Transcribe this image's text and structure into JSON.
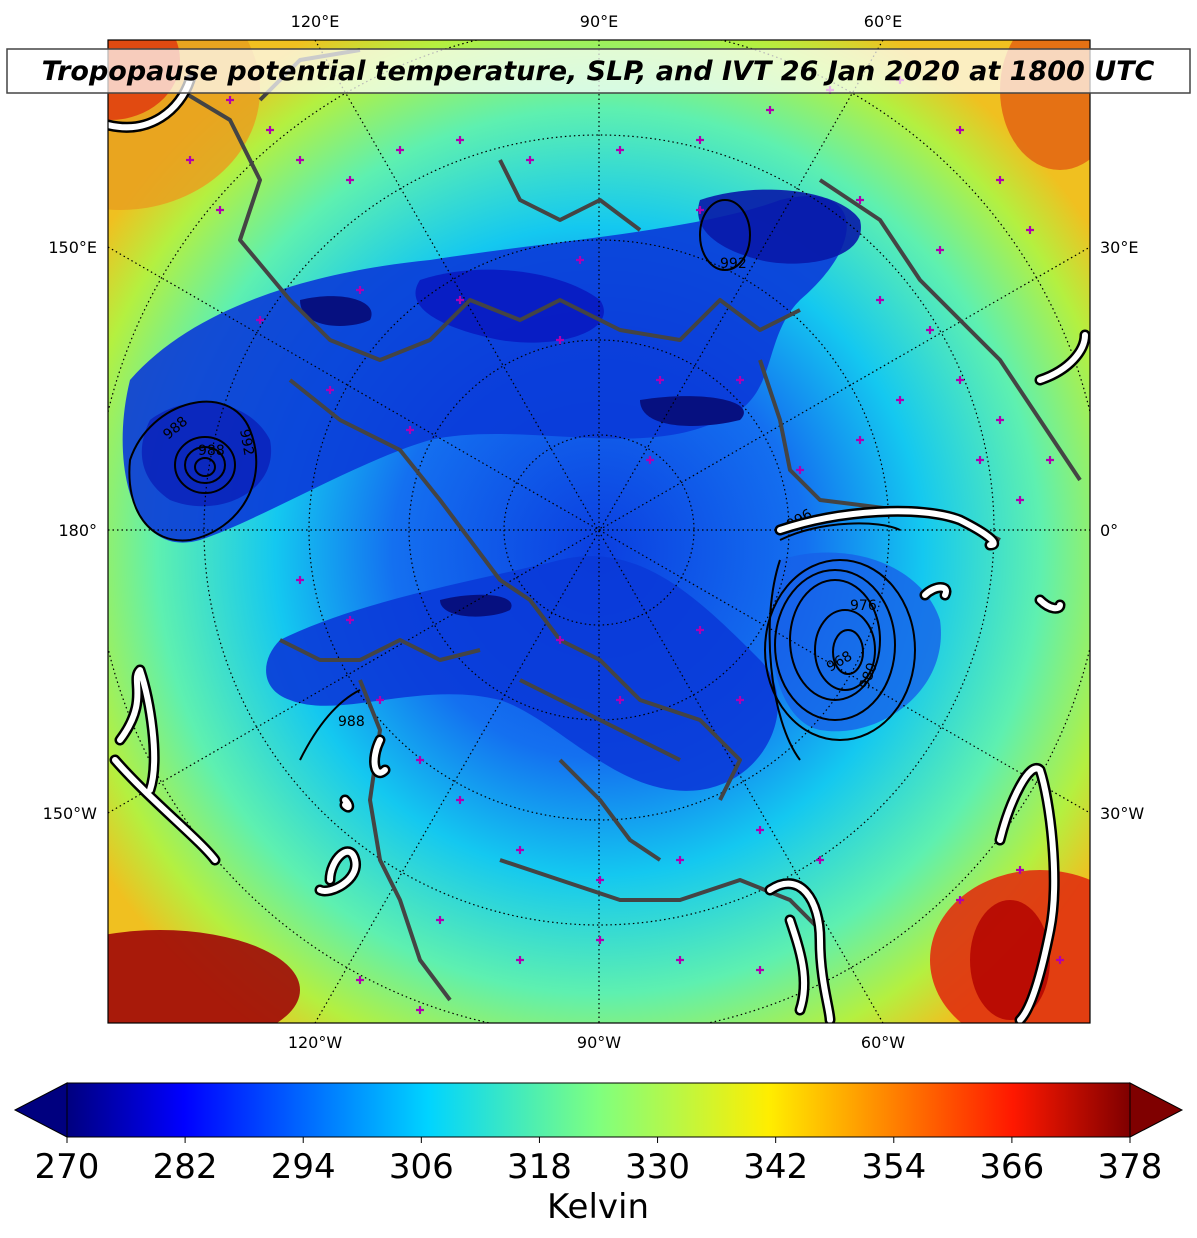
{
  "title": "Tropopause potential temperature, SLP, and IVT 26 Jan 2020 at 1800 UTC",
  "top_longitude_labels": [
    "120°E",
    "90°E",
    "60°E"
  ],
  "bottom_longitude_labels": [
    "120°W",
    "90°W",
    "60°W"
  ],
  "left_longitude_labels": [
    "150°E",
    "180°",
    "150°W"
  ],
  "right_longitude_labels": [
    "30°E",
    "0°",
    "30°W"
  ],
  "slp_contour_labels": [
    "988",
    "992",
    "988",
    "992",
    "976",
    "968",
    "980",
    "996",
    "988"
  ],
  "colorbar": {
    "ticks": [
      "270",
      "282",
      "294",
      "306",
      "318",
      "330",
      "342",
      "354",
      "366",
      "378"
    ],
    "label": "Kelvin",
    "min": 270,
    "max": 378,
    "colormap": "jet",
    "extend": "both"
  },
  "colors": {
    "low": "#00007f",
    "mid": "#7fff7f",
    "high": "#7f0000",
    "coastline": "#444444",
    "ivt_contour": "#ffffff",
    "station_marker": "#b000b0"
  }
}
